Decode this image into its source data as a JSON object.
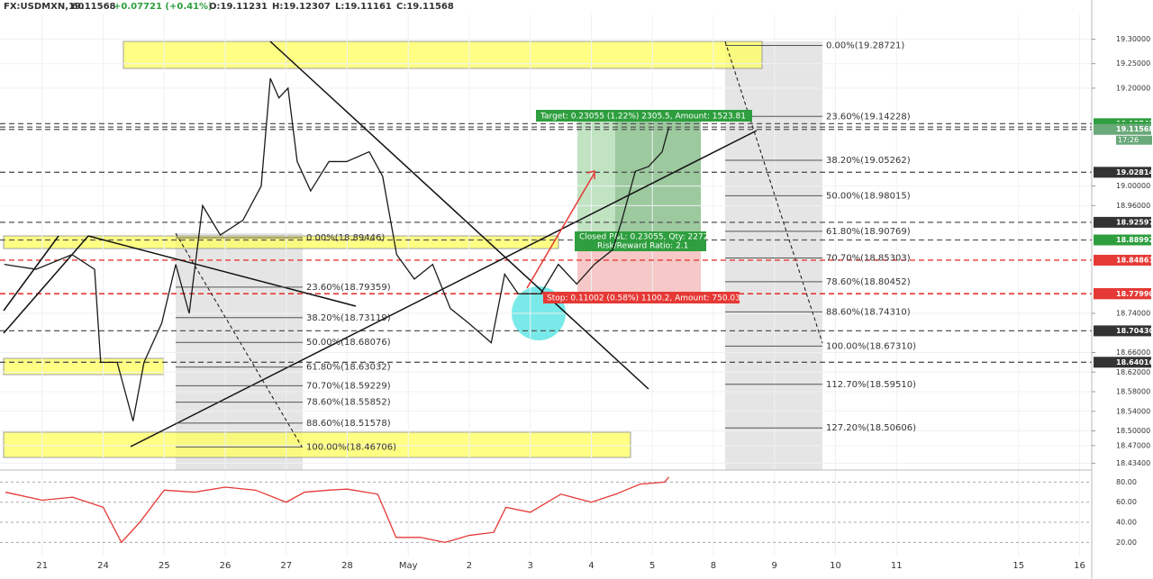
{
  "chart_data": {
    "type": "line",
    "header": {
      "symbol": "FX:USDMXN, 60",
      "last": "19.11568",
      "change": "+0.07721 (+0.41%)",
      "open": "O:19.11231",
      "high": "H:19.12307",
      "low": "L:19.11161",
      "close": "C:19.11568"
    },
    "xlim": [
      -0.69,
      17.2
    ],
    "xticks": [
      {
        "value": 0,
        "label": "21"
      },
      {
        "value": 1,
        "label": "24"
      },
      {
        "value": 2,
        "label": "25"
      },
      {
        "value": 3,
        "label": "26"
      },
      {
        "value": 4,
        "label": "27"
      },
      {
        "value": 5,
        "label": "28"
      },
      {
        "value": 6,
        "label": "May"
      },
      {
        "value": 7,
        "label": "2"
      },
      {
        "value": 8,
        "label": "3"
      },
      {
        "value": 9,
        "label": "4"
      },
      {
        "value": 10,
        "label": "5"
      },
      {
        "value": 11,
        "label": "8"
      },
      {
        "value": 12,
        "label": "9"
      },
      {
        "value": 13,
        "label": "10"
      },
      {
        "value": 14,
        "label": "11"
      },
      {
        "value": 16,
        "label": "15"
      },
      {
        "value": 17,
        "label": "16"
      }
    ],
    "ylim": [
      18.42,
      19.38
    ],
    "yticks": [
      {
        "value": 19.3,
        "label": "19.30000"
      },
      {
        "value": 19.25,
        "label": "19.25000"
      },
      {
        "value": 19.2,
        "label": "19.20000"
      },
      {
        "value": 19.0,
        "label": "19.00000"
      },
      {
        "value": 18.96,
        "label": "18.96000"
      },
      {
        "value": 18.74,
        "label": "18.74000"
      },
      {
        "value": 18.66,
        "label": "18.66000"
      },
      {
        "value": 18.62,
        "label": "18.62000"
      },
      {
        "value": 18.58,
        "label": "18.58000"
      },
      {
        "value": 18.54,
        "label": "18.54000"
      },
      {
        "value": 18.5,
        "label": "18.50000"
      },
      {
        "value": 18.47,
        "label": "18.47000"
      },
      {
        "value": 18.434,
        "label": "18.43400"
      }
    ],
    "grid": true,
    "series": [
      {
        "name": "USDMXN",
        "color": "#1a1a1a",
        "x": [
          -0.62,
          -0.1,
          0.49,
          0.86,
          0.96,
          1.23,
          1.49,
          1.67,
          1.96,
          2.19,
          2.41,
          2.63,
          2.92,
          3.29,
          3.59,
          3.74,
          3.88,
          4.03,
          4.18,
          4.4,
          4.7,
          4.99,
          5.36,
          5.58,
          5.81,
          6.1,
          6.4,
          6.69,
          6.99,
          7.36,
          7.58,
          7.8,
          8.17,
          8.46,
          8.76,
          9.05,
          9.35,
          9.5,
          9.72,
          9.94,
          10.16,
          10.27
        ],
        "values": [
          18.84,
          18.83,
          18.86,
          18.83,
          18.64,
          18.64,
          18.52,
          18.64,
          18.72,
          18.84,
          18.74,
          18.96,
          18.9,
          18.93,
          19.0,
          19.22,
          19.18,
          19.2,
          19.05,
          18.99,
          19.05,
          19.05,
          19.07,
          19.02,
          18.86,
          18.81,
          18.84,
          18.75,
          18.72,
          18.68,
          18.82,
          18.78,
          18.78,
          18.84,
          18.8,
          18.84,
          18.87,
          18.93,
          19.03,
          19.04,
          19.07,
          19.12
        ]
      }
    ],
    "price_labels": [
      {
        "value": 19.12742,
        "label": "19.12742",
        "color": "#2e9e3e"
      },
      {
        "value": 19.12047,
        "label": "19.12047",
        "color": "#2e9e3e"
      },
      {
        "value": 19.11568,
        "label": "19.11568",
        "color": "#6aa97a"
      },
      {
        "value": 19.02814,
        "label": "19.02814",
        "color": "#333333"
      },
      {
        "value": 18.92597,
        "label": "18.92597",
        "color": "#333333"
      },
      {
        "value": 18.88992,
        "label": "18.88992",
        "color": "#2e9e3e"
      },
      {
        "value": 18.84861,
        "label": "18.84861",
        "color": "#e53935"
      },
      {
        "value": 18.78042,
        "label": "18.78042",
        "color": "#e53935"
      },
      {
        "value": 18.7799,
        "label": "18.77990",
        "color": "#e53935"
      },
      {
        "value": 18.7043,
        "label": "18.70430",
        "color": "#333333"
      },
      {
        "value": 18.64016,
        "label": "18.64016",
        "color": "#333333"
      }
    ],
    "countdown": "17:26",
    "fib_right": [
      {
        "value": 19.28721,
        "label": "0.00%(19.28721)"
      },
      {
        "value": 19.14228,
        "label": "23.60%(19.14228)"
      },
      {
        "value": 19.05262,
        "label": "38.20%(19.05262)"
      },
      {
        "value": 18.98015,
        "label": "50.00%(18.98015)"
      },
      {
        "value": 18.90769,
        "label": "61.80%(18.90769)"
      },
      {
        "value": 18.85303,
        "label": "70.70%(18.85303)"
      },
      {
        "value": 18.80452,
        "label": "78.60%(18.80452)"
      },
      {
        "value": 18.7431,
        "label": "88.60%(18.74310)"
      },
      {
        "value": 18.6731,
        "label": "100.00%(18.67310)"
      },
      {
        "value": 18.5951,
        "label": "112.70%(18.59510)"
      },
      {
        "value": 18.50606,
        "label": "127.20%(18.50606)"
      }
    ],
    "fib_left": [
      {
        "value": 18.89446,
        "label": "0.00%(18.89446)"
      },
      {
        "value": 18.79359,
        "label": "23.60%(18.79359)"
      },
      {
        "value": 18.73119,
        "label": "38.20%(18.73119)"
      },
      {
        "value": 18.68076,
        "label": "50.00%(18.68076)"
      },
      {
        "value": 18.63032,
        "label": "61.80%(18.63032)"
      },
      {
        "value": 18.59229,
        "label": "70.70%(18.59229)"
      },
      {
        "value": 18.55852,
        "label": "78.60%(18.55852)"
      },
      {
        "value": 18.51578,
        "label": "88.60%(18.51578)"
      },
      {
        "value": 18.46706,
        "label": "100.00%(18.46706)"
      }
    ],
    "trade": {
      "target": "Target: 0.23055 (1.22%) 2305.5, Amount: 1523.81",
      "closed": "Closed P&L: 0.23055, Qty: 2272",
      "ratio": "Risk/Reward Ratio: 2.1",
      "stop": "Stop: 0.11002 (0.58%) 1100.2, Amount: 750.03"
    },
    "osc": {
      "ylim": [
        6,
        92
      ],
      "yticks": [
        {
          "value": 80,
          "label": "80.00"
        },
        {
          "value": 60,
          "label": "60.00"
        },
        {
          "value": 40,
          "label": "40.00"
        },
        {
          "value": 20,
          "label": "20.00"
        }
      ],
      "color": "#e53935",
      "x": [
        -0.6,
        0,
        0.5,
        1,
        1.3,
        1.6,
        2,
        2.5,
        3,
        3.5,
        4,
        4.3,
        4.7,
        5,
        5.5,
        5.8,
        6.2,
        6.6,
        7,
        7.4,
        7.6,
        8,
        8.5,
        9,
        9.4,
        9.8,
        10.2,
        10.27
      ],
      "values": [
        70,
        62,
        65,
        55,
        20,
        40,
        72,
        70,
        75,
        72,
        60,
        70,
        72,
        73,
        68,
        25,
        25,
        20,
        27,
        30,
        55,
        50,
        68,
        60,
        68,
        78,
        80,
        85
      ]
    }
  }
}
